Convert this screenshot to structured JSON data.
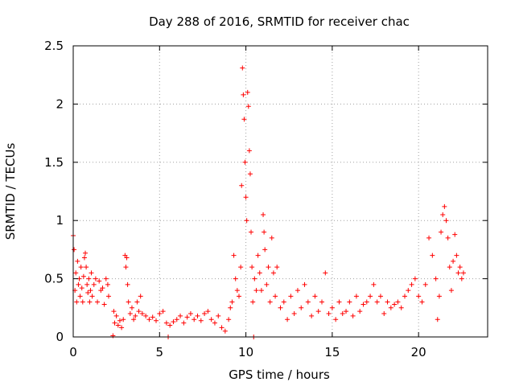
{
  "chart_data": {
    "type": "scatter",
    "title": "Day 288 of 2016, SRMTID for receiver chac",
    "xlabel": "GPS time / hours",
    "ylabel": "SRMTID / TECUs",
    "xlim": [
      0,
      24
    ],
    "ylim": [
      0,
      2.5
    ],
    "x_ticks": [
      0,
      5,
      10,
      15,
      20
    ],
    "x_tick_labels": [
      "0",
      "5",
      "10",
      "15",
      "20"
    ],
    "y_ticks": [
      0,
      0.5,
      1,
      1.5,
      2,
      2.5
    ],
    "y_tick_labels": [
      "0",
      "0.5",
      "1",
      "1.5",
      "2",
      "2.5"
    ],
    "grid": true,
    "marker": "+",
    "color": "#ff0000",
    "series": [
      {
        "name": "SRMTID",
        "points": [
          [
            0.0,
            0.87
          ],
          [
            0.05,
            0.75
          ],
          [
            0.1,
            0.4
          ],
          [
            0.15,
            0.55
          ],
          [
            0.2,
            0.3
          ],
          [
            0.25,
            0.65
          ],
          [
            0.3,
            0.45
          ],
          [
            0.35,
            0.5
          ],
          [
            0.4,
            0.35
          ],
          [
            0.45,
            0.6
          ],
          [
            0.5,
            0.42
          ],
          [
            0.55,
            0.3
          ],
          [
            0.6,
            0.52
          ],
          [
            0.65,
            0.68
          ],
          [
            0.7,
            0.72
          ],
          [
            0.75,
            0.6
          ],
          [
            0.8,
            0.45
          ],
          [
            0.85,
            0.38
          ],
          [
            0.9,
            0.5
          ],
          [
            0.95,
            0.3
          ],
          [
            1.0,
            0.4
          ],
          [
            1.05,
            0.55
          ],
          [
            1.1,
            0.35
          ],
          [
            1.2,
            0.45
          ],
          [
            1.3,
            0.5
          ],
          [
            1.4,
            0.3
          ],
          [
            1.5,
            0.48
          ],
          [
            1.6,
            0.4
          ],
          [
            1.7,
            0.42
          ],
          [
            1.8,
            0.28
          ],
          [
            1.9,
            0.5
          ],
          [
            2.0,
            0.45
          ],
          [
            2.05,
            0.35
          ],
          [
            2.3,
            0.01
          ],
          [
            2.35,
            0.22
          ],
          [
            2.4,
            0.12
          ],
          [
            2.5,
            0.18
          ],
          [
            2.6,
            0.1
          ],
          [
            2.7,
            0.14
          ],
          [
            2.8,
            0.08
          ],
          [
            2.9,
            0.15
          ],
          [
            3.0,
            0.7
          ],
          [
            3.05,
            0.6
          ],
          [
            3.1,
            0.68
          ],
          [
            3.15,
            0.45
          ],
          [
            3.2,
            0.3
          ],
          [
            3.3,
            0.2
          ],
          [
            3.4,
            0.25
          ],
          [
            3.5,
            0.15
          ],
          [
            3.6,
            0.18
          ],
          [
            3.7,
            0.3
          ],
          [
            3.8,
            0.22
          ],
          [
            3.9,
            0.35
          ],
          [
            4.0,
            0.2
          ],
          [
            4.2,
            0.18
          ],
          [
            4.4,
            0.15
          ],
          [
            4.6,
            0.17
          ],
          [
            4.8,
            0.14
          ],
          [
            5.0,
            0.2
          ],
          [
            5.2,
            0.22
          ],
          [
            5.4,
            0.12
          ],
          [
            5.5,
            0.0
          ],
          [
            5.6,
            0.1
          ],
          [
            5.8,
            0.13
          ],
          [
            6.0,
            0.15
          ],
          [
            6.2,
            0.18
          ],
          [
            6.4,
            0.12
          ],
          [
            6.6,
            0.17
          ],
          [
            6.8,
            0.2
          ],
          [
            7.0,
            0.15
          ],
          [
            7.2,
            0.18
          ],
          [
            7.4,
            0.14
          ],
          [
            7.6,
            0.2
          ],
          [
            7.8,
            0.22
          ],
          [
            8.0,
            0.15
          ],
          [
            8.2,
            0.12
          ],
          [
            8.4,
            0.18
          ],
          [
            8.6,
            0.08
          ],
          [
            8.8,
            0.05
          ],
          [
            9.0,
            0.15
          ],
          [
            9.1,
            0.25
          ],
          [
            9.2,
            0.3
          ],
          [
            9.3,
            0.7
          ],
          [
            9.4,
            0.5
          ],
          [
            9.5,
            0.4
          ],
          [
            9.6,
            0.35
          ],
          [
            9.7,
            0.6
          ],
          [
            9.75,
            1.3
          ],
          [
            9.8,
            2.31
          ],
          [
            9.85,
            2.08
          ],
          [
            9.9,
            1.87
          ],
          [
            9.95,
            1.5
          ],
          [
            10.0,
            1.2
          ],
          [
            10.05,
            1.0
          ],
          [
            10.1,
            2.1
          ],
          [
            10.15,
            1.98
          ],
          [
            10.2,
            1.6
          ],
          [
            10.25,
            1.4
          ],
          [
            10.3,
            0.9
          ],
          [
            10.35,
            0.6
          ],
          [
            10.4,
            0.3
          ],
          [
            10.45,
            0.0
          ],
          [
            10.5,
            0.5
          ],
          [
            10.6,
            0.4
          ],
          [
            10.7,
            0.7
          ],
          [
            10.8,
            0.55
          ],
          [
            10.9,
            0.4
          ],
          [
            11.0,
            1.05
          ],
          [
            11.05,
            0.9
          ],
          [
            11.1,
            0.75
          ],
          [
            11.2,
            0.45
          ],
          [
            11.3,
            0.6
          ],
          [
            11.4,
            0.3
          ],
          [
            11.5,
            0.85
          ],
          [
            11.6,
            0.55
          ],
          [
            11.7,
            0.35
          ],
          [
            11.8,
            0.6
          ],
          [
            12.0,
            0.25
          ],
          [
            12.2,
            0.3
          ],
          [
            12.4,
            0.15
          ],
          [
            12.6,
            0.35
          ],
          [
            12.8,
            0.2
          ],
          [
            13.0,
            0.4
          ],
          [
            13.2,
            0.25
          ],
          [
            13.4,
            0.45
          ],
          [
            13.6,
            0.3
          ],
          [
            13.8,
            0.18
          ],
          [
            14.0,
            0.35
          ],
          [
            14.2,
            0.22
          ],
          [
            14.4,
            0.3
          ],
          [
            14.6,
            0.55
          ],
          [
            14.8,
            0.2
          ],
          [
            15.0,
            0.25
          ],
          [
            15.2,
            0.15
          ],
          [
            15.4,
            0.3
          ],
          [
            15.6,
            0.2
          ],
          [
            15.8,
            0.22
          ],
          [
            16.0,
            0.3
          ],
          [
            16.2,
            0.18
          ],
          [
            16.4,
            0.35
          ],
          [
            16.6,
            0.22
          ],
          [
            16.8,
            0.28
          ],
          [
            17.0,
            0.3
          ],
          [
            17.2,
            0.35
          ],
          [
            17.4,
            0.45
          ],
          [
            17.6,
            0.3
          ],
          [
            17.8,
            0.35
          ],
          [
            18.0,
            0.2
          ],
          [
            18.2,
            0.3
          ],
          [
            18.4,
            0.25
          ],
          [
            18.6,
            0.28
          ],
          [
            18.8,
            0.3
          ],
          [
            19.0,
            0.25
          ],
          [
            19.2,
            0.35
          ],
          [
            19.4,
            0.4
          ],
          [
            19.6,
            0.45
          ],
          [
            19.8,
            0.5
          ],
          [
            20.0,
            0.35
          ],
          [
            20.2,
            0.3
          ],
          [
            20.4,
            0.45
          ],
          [
            20.6,
            0.85
          ],
          [
            20.8,
            0.7
          ],
          [
            21.0,
            0.5
          ],
          [
            21.1,
            0.15
          ],
          [
            21.2,
            0.35
          ],
          [
            21.3,
            0.9
          ],
          [
            21.4,
            1.05
          ],
          [
            21.5,
            1.12
          ],
          [
            21.6,
            1.0
          ],
          [
            21.7,
            0.85
          ],
          [
            21.8,
            0.6
          ],
          [
            21.9,
            0.4
          ],
          [
            22.0,
            0.65
          ],
          [
            22.1,
            0.88
          ],
          [
            22.2,
            0.7
          ],
          [
            22.3,
            0.55
          ],
          [
            22.4,
            0.6
          ],
          [
            22.5,
            0.5
          ],
          [
            22.6,
            0.55
          ]
        ]
      }
    ]
  }
}
